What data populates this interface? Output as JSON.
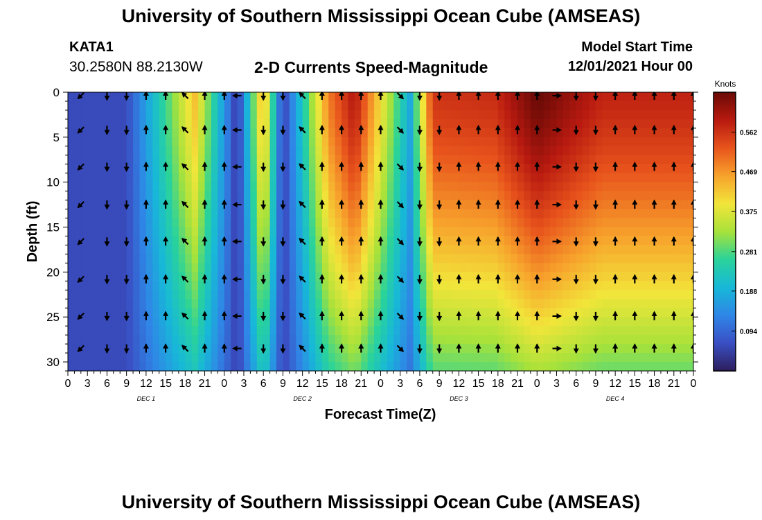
{
  "header": {
    "title": "University of Southern Mississippi Ocean Cube (AMSEAS)",
    "station": "KATA1",
    "coords": "30.2580N  88.2130W",
    "chart_title": "2-D Currents Speed-Magnitude",
    "start_label": "Model Start Time",
    "start_value": "12/01/2021 Hour 00"
  },
  "footer": {
    "title": "University of Southern Mississippi Ocean Cube (AMSEAS)"
  },
  "chart_data": {
    "type": "heatmap",
    "title": "2-D Currents Speed-Magnitude",
    "xlabel": "Forecast Time(Z)",
    "ylabel": "Depth (ft)",
    "x_range_hours": [
      0,
      96
    ],
    "y_range_ft": [
      0,
      31
    ],
    "x_tick_labels": [
      "0",
      "3",
      "6",
      "9",
      "12",
      "15",
      "18",
      "21",
      "0",
      "3",
      "6",
      "9",
      "12",
      "15",
      "18",
      "21",
      "0",
      "3",
      "6",
      "9",
      "12",
      "15",
      "18",
      "21",
      "0",
      "3",
      "6",
      "9",
      "12",
      "15",
      "18",
      "21",
      "0"
    ],
    "y_ticks": [
      0,
      5,
      10,
      15,
      20,
      25,
      30
    ],
    "day_labels": [
      {
        "label": "DEC 1",
        "hour": 12
      },
      {
        "label": "DEC 2",
        "hour": 36
      },
      {
        "label": "DEC 3",
        "hour": 60
      },
      {
        "label": "DEC 4",
        "hour": 84
      }
    ],
    "colorbar": {
      "unit": "Knots",
      "min": 0,
      "max": 0.656,
      "tick_labels": [
        "0.562",
        "0.469",
        "0.375",
        "0.281",
        "0.188",
        "0.094"
      ],
      "colors": [
        "#2d1e5c",
        "#3a4fc4",
        "#2f86e6",
        "#17b8d8",
        "#2ad39a",
        "#a8e23a",
        "#f2e53a",
        "#f7a22c",
        "#e8541c",
        "#b81a10",
        "#6a0a06"
      ]
    },
    "surface_events": [
      {
        "hour": 3.5,
        "speed": 0.06
      },
      {
        "hour": 9,
        "speed": 0.06
      },
      {
        "hour": 19.5,
        "speed": 0.43
      },
      {
        "hour": 26,
        "speed": 0.03
      },
      {
        "hour": 30,
        "speed": 0.46
      },
      {
        "hour": 33,
        "speed": 0.04
      },
      {
        "hour": 40,
        "speed": 0.49
      },
      {
        "hour": 44,
        "speed": 0.6
      },
      {
        "hour": 52.5,
        "speed": 0.18
      },
      {
        "hour": 56,
        "speed": 0.56
      },
      {
        "hour": 65.5,
        "speed": 0.57
      },
      {
        "hour": 72,
        "speed": 0.66
      },
      {
        "hour": 82,
        "speed": 0.58
      }
    ],
    "vector_depths_ft": [
      0,
      4.2,
      8.3,
      12.5,
      16.6,
      20.8,
      24.9,
      28.5
    ],
    "vector_hours": [
      2,
      6,
      9,
      12,
      15,
      18,
      21,
      24,
      26,
      30,
      33,
      36,
      39,
      42,
      45,
      48,
      51,
      54,
      57,
      60,
      63,
      66,
      69,
      72,
      75,
      78,
      81,
      84,
      87,
      90,
      93,
      96
    ],
    "vector_directions_deg": [
      225,
      180,
      180,
      0,
      0,
      315,
      0,
      0,
      270,
      180,
      180,
      315,
      0,
      0,
      0,
      0,
      135,
      180,
      180,
      0,
      0,
      0,
      0,
      0,
      90,
      180,
      180,
      0,
      0,
      0,
      0,
      0
    ]
  }
}
